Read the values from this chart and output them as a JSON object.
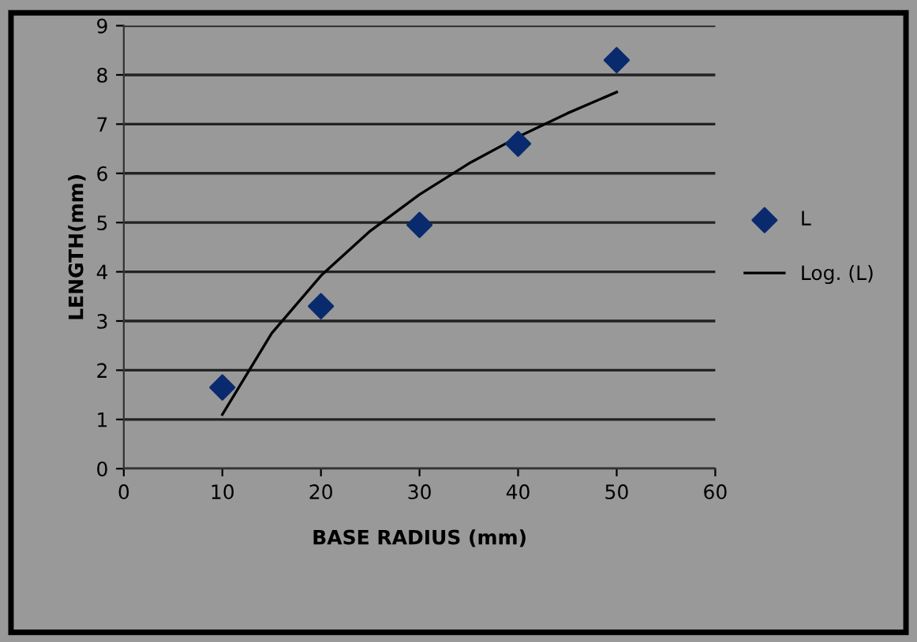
{
  "chart_data": {
    "type": "scatter",
    "xlabel": "BASE RADIUS (mm)",
    "ylabel": "LENGTH(mm)",
    "xlim": [
      0,
      60
    ],
    "xticks": [
      0,
      10,
      20,
      30,
      40,
      50,
      60
    ],
    "ylim": [
      0,
      9
    ],
    "yticks": [
      0,
      1,
      2,
      3,
      4,
      5,
      6,
      7,
      8,
      9
    ],
    "grid": "y",
    "legend": "right",
    "x": [
      10,
      20,
      30,
      40,
      50
    ],
    "series": [
      {
        "name": "L",
        "marker": "diamond",
        "color": "#0a2a6e",
        "values": [
          1.65,
          3.3,
          4.95,
          6.6,
          8.3
        ]
      },
      {
        "name": "Log. (L)",
        "type": "line",
        "marker": "none",
        "line_style": "solid",
        "color": "#000000",
        "x": [
          10,
          15,
          20,
          25,
          30,
          35,
          40,
          45,
          50
        ],
        "values": [
          1.1,
          2.75,
          3.92,
          4.83,
          5.57,
          6.2,
          6.74,
          7.22,
          7.65
        ]
      }
    ]
  }
}
